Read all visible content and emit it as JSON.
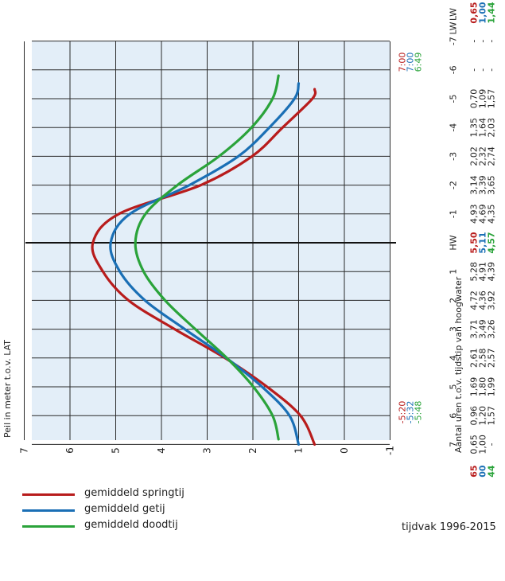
{
  "chart_data": {
    "type": "line",
    "ylabel": "Peil in meter t.o.v. LAT",
    "xlabel": "Aantal uren t.o.v. tijdstip van hoogwater",
    "period": "tijdvak 1996-2015",
    "ylim": [
      -1,
      7
    ],
    "xlim": [
      -7,
      7
    ],
    "x_ticks": [
      "LW",
      "-7",
      "-6",
      "-5",
      "-4",
      "-3",
      "-2",
      "-1",
      "HW",
      "1",
      "2",
      "3",
      "4",
      "5",
      "6",
      "7",
      "LW"
    ],
    "y_ticks": [
      "7",
      "6",
      "5",
      "4",
      "3",
      "2",
      "1",
      "0",
      "-1"
    ],
    "colors": {
      "springtij": "#b81c1c",
      "getij": "#1a6fb5",
      "doodtij": "#2aa33a",
      "grid": "#2a2a2a",
      "plot_bg": "#e3eef8"
    },
    "series": [
      {
        "name": "gemiddeld springtij",
        "color_key": "springtij",
        "lw_time": "-5:20",
        "hw_time_after": "7:00",
        "x": [
          -5.33,
          -5,
          -4,
          -3,
          -2,
          -1,
          0,
          1,
          2,
          3,
          4,
          5,
          6,
          7
        ],
        "values": [
          0.65,
          0.7,
          1.35,
          2.02,
          3.14,
          4.93,
          5.5,
          5.28,
          4.72,
          3.71,
          2.61,
          1.69,
          0.96,
          0.65
        ],
        "table_lw_start": "0,65",
        "table_hw": "5,50",
        "table_lw_end": "0,65",
        "table_values": [
          "-",
          "-",
          "0,70",
          "1,35",
          "2,02",
          "3,14",
          "4,93",
          "5,50",
          "5,28",
          "4,72",
          "3,71",
          "2,61",
          "1,69",
          "0,96",
          "0,65"
        ]
      },
      {
        "name": "gemiddeld getij",
        "color_key": "getij",
        "lw_time": "-5:32",
        "hw_time_after": "7:00",
        "x": [
          -5.53,
          -5,
          -4,
          -3,
          -2,
          -1,
          0,
          1,
          2,
          3,
          4,
          5,
          6,
          7
        ],
        "values": [
          1.0,
          1.09,
          1.64,
          2.32,
          3.39,
          4.69,
          5.11,
          4.91,
          4.36,
          3.49,
          2.58,
          1.8,
          1.2,
          1.0
        ],
        "table_lw_start": "1,00",
        "table_hw": "5,11",
        "table_lw_end": "1,00",
        "table_values": [
          "-",
          "-",
          "1,09",
          "1,64",
          "2,32",
          "3,39",
          "4,69",
          "5,11",
          "4,91",
          "4,36",
          "3,49",
          "2,58",
          "1,80",
          "1,20",
          "1,00"
        ]
      },
      {
        "name": "gemiddeld doodtij",
        "color_key": "doodtij",
        "lw_time": "-5:48",
        "hw_time_after": "6:49",
        "x": [
          -5.8,
          -5,
          -4,
          -3,
          -2,
          -1,
          0,
          1,
          2,
          3,
          4,
          5,
          6,
          6.82
        ],
        "values": [
          1.44,
          1.57,
          2.03,
          2.74,
          3.65,
          4.35,
          4.57,
          4.39,
          3.92,
          3.26,
          2.57,
          1.99,
          1.57,
          1.44
        ],
        "table_lw_start": "1,44",
        "table_hw": "4,57",
        "table_lw_end": "1,44",
        "table_values": [
          "-",
          "-",
          "1,57",
          "2,03",
          "2,74",
          "3,65",
          "4,35",
          "4,57",
          "4,39",
          "3,92",
          "3,26",
          "2,57",
          "1,99",
          "1,57",
          "-"
        ]
      }
    ]
  },
  "legend": [
    {
      "label": "gemiddeld springtij"
    },
    {
      "label": "gemiddeld getij"
    },
    {
      "label": "gemiddeld doodtij"
    }
  ]
}
